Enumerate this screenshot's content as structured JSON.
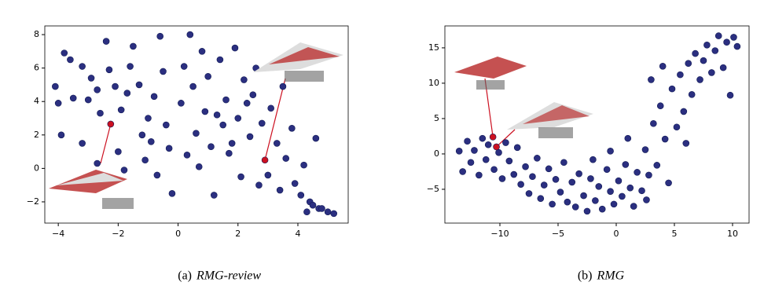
{
  "chart_data": [
    {
      "type": "scatter",
      "caption_label": "(a)",
      "caption": "RMG-review",
      "xlim": [
        -4.45,
        5.68
      ],
      "ylim": [
        -3.27,
        8.52
      ],
      "xticks": [
        {
          "value": -4,
          "label": "−4"
        },
        {
          "value": -2,
          "label": "−2"
        },
        0,
        2,
        4
      ],
      "yticks": [
        {
          "value": -2,
          "label": "−2"
        },
        0,
        2,
        4,
        6,
        8
      ],
      "series": [
        {
          "color": "#2b2f80",
          "x": [
            -4.1,
            -4.0,
            -3.8,
            -3.6,
            -3.9,
            -3.2,
            -3.0,
            -3.5,
            -3.2,
            -2.9,
            -2.7,
            -2.6,
            -2.4,
            -2.3,
            -2.1,
            -1.9,
            -1.7,
            -1.6,
            -1.5,
            -1.3,
            -1.2,
            -1.1,
            -1.0,
            -0.8,
            -0.6,
            -0.5,
            -0.4,
            -0.3,
            -0.2,
            0.1,
            0.2,
            0.4,
            0.5,
            0.6,
            0.7,
            0.9,
            1.0,
            1.1,
            1.2,
            1.4,
            1.5,
            1.6,
            1.7,
            1.9,
            2.0,
            2.1,
            2.2,
            2.4,
            2.5,
            2.6,
            2.7,
            2.8,
            3.0,
            3.1,
            3.3,
            3.4,
            3.6,
            3.8,
            3.9,
            4.1,
            4.2,
            4.3,
            4.4,
            4.5,
            4.6,
            4.7,
            4.8,
            5.0,
            5.2,
            -2.7,
            -1.8,
            -0.9,
            0.3,
            1.3,
            2.3,
            -0.7,
            3.5,
            0.8,
            -2.0,
            1.8
          ],
          "values": [
            4.9,
            3.9,
            6.9,
            6.5,
            2.0,
            1.5,
            4.1,
            4.2,
            6.1,
            5.4,
            4.7,
            3.3,
            7.6,
            5.9,
            4.9,
            3.5,
            4.5,
            6.1,
            7.3,
            5.0,
            2.0,
            0.5,
            3.0,
            4.3,
            7.9,
            5.8,
            2.6,
            1.2,
            -1.5,
            3.9,
            6.1,
            8.0,
            4.9,
            2.1,
            0.1,
            3.4,
            5.5,
            1.3,
            -1.6,
            6.5,
            2.6,
            4.1,
            0.9,
            7.2,
            3.0,
            -0.5,
            5.3,
            1.9,
            4.4,
            6.0,
            -1.0,
            2.7,
            -0.4,
            3.6,
            1.5,
            -1.3,
            0.6,
            2.4,
            -0.9,
            -1.6,
            0.2,
            -2.6,
            -2.0,
            -2.2,
            1.8,
            -2.4,
            -2.4,
            -2.6,
            -2.7,
            0.3,
            -0.1,
            1.6,
            0.8,
            3.2,
            3.9,
            -0.4,
            4.9,
            7.0,
            1.0,
            1.5
          ]
        },
        {
          "color": "#cc1020",
          "x": [
            -2.25,
            2.9
          ],
          "values": [
            2.65,
            0.5
          ]
        }
      ]
    },
    {
      "type": "scatter",
      "caption_label": "(b)",
      "caption": "RMG",
      "xlim": [
        -14.73,
        11.42
      ],
      "ylim": [
        -9.78,
        18.1
      ],
      "xticks": [
        {
          "value": -10,
          "label": "−10"
        },
        {
          "value": -5,
          "label": "−5"
        },
        0,
        5,
        10
      ],
      "yticks": [
        {
          "value": -5,
          "label": "−5"
        },
        0,
        5,
        10,
        15
      ],
      "series": [
        {
          "color": "#2b2f80",
          "x": [
            -13.5,
            -13.2,
            -12.8,
            -12.5,
            -12.2,
            -11.8,
            -11.5,
            -11.2,
            -11.0,
            -10.5,
            -10.1,
            -9.8,
            -9.5,
            -9.2,
            -8.8,
            -8.5,
            -8.2,
            -7.8,
            -7.5,
            -7.2,
            -6.8,
            -6.5,
            -6.2,
            -5.8,
            -5.5,
            -5.2,
            -4.8,
            -4.5,
            -4.2,
            -3.8,
            -3.5,
            -3.2,
            -2.8,
            -2.5,
            -2.2,
            -1.8,
            -1.5,
            -1.2,
            -0.8,
            -0.5,
            -0.2,
            0.2,
            0.5,
            0.8,
            1.2,
            1.5,
            1.8,
            2.2,
            2.5,
            2.8,
            3.2,
            3.5,
            3.8,
            4.2,
            4.5,
            4.8,
            5.2,
            5.5,
            5.8,
            6.2,
            6.5,
            6.8,
            7.2,
            7.5,
            7.8,
            8.2,
            8.5,
            8.8,
            9.2,
            9.5,
            9.8,
            10.1,
            10.4,
            3.0,
            4.0,
            2.6,
            -0.5,
            -2.0,
            1.0,
            6.0
          ],
          "values": [
            0.4,
            -2.5,
            1.8,
            -1.2,
            0.5,
            -3.0,
            2.2,
            -0.8,
            1.3,
            -2.2,
            0.2,
            -3.5,
            1.6,
            -1.0,
            -2.9,
            0.9,
            -4.3,
            -1.8,
            -5.6,
            -3.2,
            -0.6,
            -6.3,
            -4.4,
            -2.1,
            -7.1,
            -3.6,
            -5.4,
            -1.2,
            -6.8,
            -4.0,
            -7.5,
            -2.8,
            -5.9,
            -8.1,
            -3.5,
            -6.6,
            -4.6,
            -7.8,
            -2.2,
            -5.3,
            -7.1,
            -3.8,
            -6.0,
            -1.5,
            -4.8,
            -7.4,
            -2.6,
            -5.2,
            0.6,
            -3.0,
            4.3,
            -1.6,
            6.8,
            2.1,
            -4.1,
            9.2,
            3.8,
            11.2,
            6.0,
            12.8,
            8.4,
            14.2,
            10.5,
            13.2,
            15.4,
            11.5,
            14.6,
            16.7,
            12.2,
            15.8,
            8.3,
            16.5,
            15.2,
            10.5,
            12.4,
            -6.5,
            0.4,
            -0.8,
            2.2,
            1.5
          ]
        },
        {
          "color": "#cc1020",
          "x": [
            -10.6,
            -10.3
          ],
          "values": [
            2.4,
            1.0
          ]
        }
      ]
    }
  ]
}
